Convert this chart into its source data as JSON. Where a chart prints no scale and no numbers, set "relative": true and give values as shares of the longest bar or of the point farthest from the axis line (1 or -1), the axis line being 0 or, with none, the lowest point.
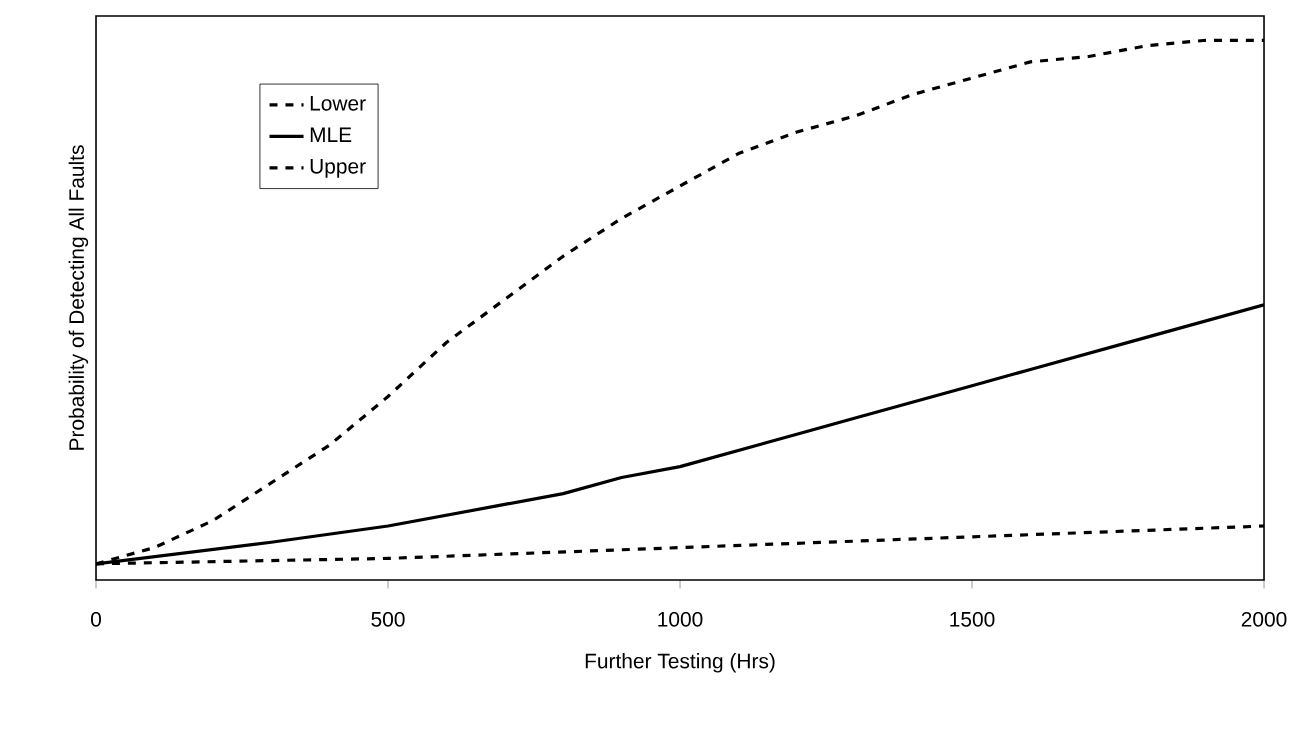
{
  "chart_data": {
    "type": "line",
    "relative": true,
    "xlabel": "Further Testing (Hrs)",
    "ylabel": "Probability of Detecting All Faults",
    "xlim": [
      0,
      2000
    ],
    "xticks": [
      0,
      500,
      1000,
      1500,
      2000
    ],
    "legend": "top left",
    "grid": false,
    "series": [
      {
        "name": "Lower",
        "color": "#000000",
        "line_style": "dashed",
        "x": [
          0,
          500,
          1000,
          1500,
          2000
        ],
        "values": [
          0.03,
          0.04,
          0.06,
          0.08,
          0.1
        ]
      },
      {
        "name": "MLE",
        "color": "#000000",
        "line_style": "solid",
        "x": [
          0,
          300,
          500,
          700,
          800,
          900,
          1000,
          1200,
          1300,
          1500,
          1600,
          1800,
          2000
        ],
        "values": [
          0.03,
          0.07,
          0.1,
          0.14,
          0.16,
          0.19,
          0.21,
          0.27,
          0.3,
          0.36,
          0.39,
          0.45,
          0.51
        ]
      },
      {
        "name": "Upper",
        "color": "#000000",
        "line_style": "dashed",
        "x": [
          0,
          100,
          200,
          300,
          400,
          500,
          600,
          700,
          800,
          900,
          1000,
          1100,
          1200,
          1300,
          1400,
          1500,
          1600,
          1700,
          1800,
          1900,
          2000
        ],
        "values": [
          0.03,
          0.06,
          0.11,
          0.18,
          0.25,
          0.34,
          0.44,
          0.52,
          0.6,
          0.67,
          0.73,
          0.79,
          0.83,
          0.86,
          0.9,
          0.93,
          0.96,
          0.97,
          0.99,
          1,
          1
        ]
      }
    ]
  }
}
